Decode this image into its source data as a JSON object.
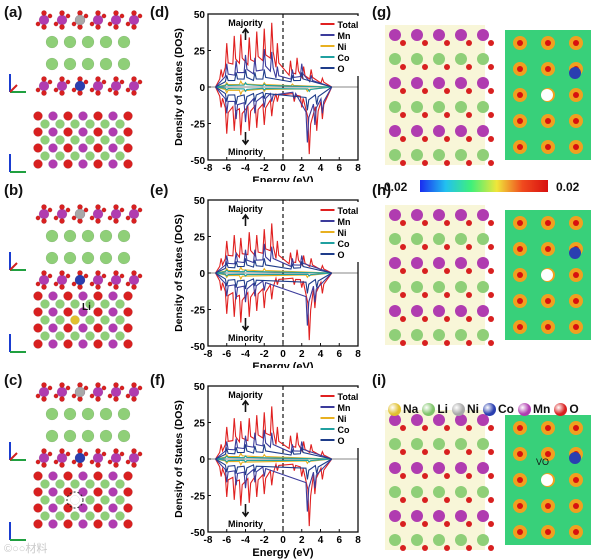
{
  "panel_labels": [
    "(a)",
    "(b)",
    "(c)",
    "(d)",
    "(e)",
    "(f)",
    "(g)",
    "(h)",
    "(i)"
  ],
  "colorbar": {
    "min_label": "-0.02",
    "max_label": "0.02",
    "colors": [
      "#1a2cf0",
      "#22c0f0",
      "#3ff07a",
      "#f0e63a",
      "#f04a1e",
      "#d81010"
    ]
  },
  "structure_labels": {
    "li_label": "Li",
    "vo_label": "VO"
  },
  "axis_triads": {
    "a": "a",
    "b": "b",
    "c": "c"
  },
  "atom_legend": [
    {
      "name": "Na",
      "color": "#e0c030"
    },
    {
      "name": "Li",
      "color": "#7fc46a"
    },
    {
      "name": "Ni",
      "color": "#a8a8a8"
    },
    {
      "name": "Co",
      "color": "#2a3fb0"
    },
    {
      "name": "Mn",
      "color": "#b03cb0"
    },
    {
      "name": "O",
      "color": "#d82020"
    }
  ],
  "watermark": "©○○材料",
  "chart_data": [
    {
      "id": "d",
      "type": "line",
      "xlabel": "Energy (eV)",
      "ylabel": "Density of States (DOS)",
      "xlim": [
        -8,
        8
      ],
      "ylim": [
        -50,
        50
      ],
      "xticks": [
        -8,
        -6,
        -4,
        -2,
        0,
        2,
        4,
        6,
        8
      ],
      "yticks": [
        50,
        25,
        0,
        -25,
        -50
      ],
      "annotations": {
        "top": "Majority",
        "bottom": "Minority"
      },
      "series": [
        {
          "name": "Total",
          "color": "#e02020",
          "up_peaks": [
            [
              -6.6,
              12
            ],
            [
              -6.0,
              30
            ],
            [
              -5.2,
              35
            ],
            [
              -4.5,
              36
            ],
            [
              -3.6,
              34
            ],
            [
              -2.8,
              38
            ],
            [
              -2.0,
              40
            ],
            [
              -1.2,
              44
            ],
            [
              -0.6,
              30
            ],
            [
              0.8,
              18
            ],
            [
              1.5,
              20
            ],
            [
              2.2,
              14
            ],
            [
              3.0,
              12
            ],
            [
              4.2,
              6
            ]
          ],
          "dn_peaks": [
            [
              -6.6,
              -14
            ],
            [
              -6.0,
              -32
            ],
            [
              -5.2,
              -30
            ],
            [
              -4.5,
              -33
            ],
            [
              -3.6,
              -30
            ],
            [
              -2.8,
              -28
            ],
            [
              -2.0,
              -26
            ],
            [
              -1.2,
              -20
            ],
            [
              -0.6,
              -10
            ],
            [
              1.2,
              -10
            ],
            [
              2.0,
              -14
            ],
            [
              2.8,
              -46
            ],
            [
              3.6,
              -30
            ],
            [
              4.2,
              -22
            ]
          ]
        },
        {
          "name": "Mn",
          "color": "#3b3b9b",
          "up_peaks": [
            [
              -6.0,
              16
            ],
            [
              -5.0,
              18
            ],
            [
              -4.0,
              22
            ],
            [
              -3.0,
              20
            ],
            [
              -2.0,
              26
            ],
            [
              -1.2,
              24
            ],
            [
              -0.6,
              14
            ],
            [
              1.0,
              12
            ],
            [
              2.0,
              16
            ],
            [
              3.0,
              8
            ]
          ],
          "dn_peaks": [
            [
              -6.0,
              -18
            ],
            [
              -5.0,
              -22
            ],
            [
              -4.0,
              -24
            ],
            [
              -3.0,
              -18
            ],
            [
              -2.0,
              -14
            ],
            [
              -1.2,
              -10
            ],
            [
              1.2,
              -8
            ],
            [
              2.6,
              -38
            ],
            [
              3.4,
              -26
            ],
            [
              4.2,
              -18
            ]
          ]
        },
        {
          "name": "Ni",
          "color": "#e8b020",
          "up_peaks": [
            [
              -6.0,
              3
            ],
            [
              -4.5,
              4
            ],
            [
              -2.0,
              3
            ],
            [
              1.0,
              2
            ]
          ],
          "dn_peaks": [
            [
              -6.0,
              -4
            ],
            [
              -4.5,
              -5
            ],
            [
              -2.0,
              -3
            ],
            [
              2.6,
              -3
            ]
          ]
        },
        {
          "name": "Co",
          "color": "#20a0a0",
          "up_peaks": [
            [
              -6.0,
              2
            ],
            [
              -4.0,
              3
            ],
            [
              -2.0,
              2
            ]
          ],
          "dn_peaks": [
            [
              -6.0,
              -2
            ],
            [
              -4.0,
              -3
            ],
            [
              -2.0,
              -2
            ],
            [
              2.8,
              -3
            ]
          ]
        },
        {
          "name": "O",
          "color": "#1e3c8a",
          "up_peaks": [
            [
              -6.0,
              8
            ],
            [
              -5.0,
              10
            ],
            [
              -4.0,
              12
            ],
            [
              -3.0,
              10
            ],
            [
              -2.0,
              12
            ],
            [
              1.0,
              8
            ],
            [
              2.0,
              10
            ]
          ],
          "dn_peaks": [
            [
              -6.0,
              -10
            ],
            [
              -5.0,
              -12
            ],
            [
              -4.0,
              -12
            ],
            [
              -3.0,
              -10
            ],
            [
              -2.0,
              -8
            ],
            [
              2.6,
              -16
            ],
            [
              3.6,
              -12
            ]
          ]
        }
      ]
    },
    {
      "id": "e",
      "type": "line",
      "xlabel": "Energy (eV)",
      "ylabel": "Density of States (DOS)",
      "xlim": [
        -8,
        8
      ],
      "ylim": [
        -50,
        50
      ],
      "xticks": [
        -8,
        -6,
        -4,
        -2,
        0,
        2,
        4,
        6,
        8
      ],
      "yticks": [
        50,
        25,
        0,
        -25,
        -50
      ],
      "annotations": {
        "top": "Majority",
        "bottom": "Minority"
      },
      "series": [
        {
          "name": "Total",
          "color": "#e02020",
          "up_peaks": [
            [
              -6.6,
              10
            ],
            [
              -6.0,
              22
            ],
            [
              -5.2,
              26
            ],
            [
              -4.5,
              24
            ],
            [
              -3.6,
              28
            ],
            [
              -2.8,
              26
            ],
            [
              -2.0,
              30
            ],
            [
              -1.2,
              34
            ],
            [
              -0.6,
              22
            ],
            [
              0.8,
              14
            ],
            [
              1.5,
              16
            ],
            [
              2.2,
              12
            ],
            [
              3.0,
              10
            ],
            [
              4.2,
              5
            ]
          ],
          "dn_peaks": [
            [
              -6.6,
              -12
            ],
            [
              -6.0,
              -28
            ],
            [
              -5.2,
              -30
            ],
            [
              -4.5,
              -34
            ],
            [
              -3.6,
              -30
            ],
            [
              -2.8,
              -26
            ],
            [
              -2.0,
              -24
            ],
            [
              -1.2,
              -18
            ],
            [
              -0.6,
              -8
            ],
            [
              1.2,
              -8
            ],
            [
              2.0,
              -10
            ],
            [
              2.8,
              -46
            ],
            [
              3.4,
              -24
            ],
            [
              4.2,
              -14
            ]
          ]
        },
        {
          "name": "Mn",
          "color": "#3b3b9b",
          "up_peaks": [
            [
              -6.0,
              12
            ],
            [
              -5.0,
              14
            ],
            [
              -4.0,
              16
            ],
            [
              -3.0,
              16
            ],
            [
              -2.0,
              20
            ],
            [
              -1.2,
              18
            ],
            [
              1.0,
              10
            ],
            [
              2.0,
              12
            ]
          ],
          "dn_peaks": [
            [
              -6.0,
              -16
            ],
            [
              -5.0,
              -18
            ],
            [
              -4.0,
              -20
            ],
            [
              -3.0,
              -16
            ],
            [
              -2.0,
              -12
            ],
            [
              2.6,
              -36
            ],
            [
              3.4,
              -20
            ]
          ]
        },
        {
          "name": "Ni",
          "color": "#e8b020",
          "up_peaks": [
            [
              -6.0,
              3
            ],
            [
              -4.5,
              4
            ],
            [
              -2.0,
              3
            ]
          ],
          "dn_peaks": [
            [
              -6.0,
              -3
            ],
            [
              -4.5,
              -4
            ],
            [
              2.6,
              -3
            ]
          ]
        },
        {
          "name": "Co",
          "color": "#20a0a0",
          "up_peaks": [
            [
              -6.0,
              2
            ],
            [
              -4.0,
              2
            ]
          ],
          "dn_peaks": [
            [
              -6.0,
              -2
            ],
            [
              -4.0,
              -2
            ],
            [
              2.8,
              -2
            ]
          ]
        },
        {
          "name": "O",
          "color": "#1e3c8a",
          "up_peaks": [
            [
              -6.0,
              7
            ],
            [
              -5.0,
              8
            ],
            [
              -4.0,
              10
            ],
            [
              -3.0,
              9
            ],
            [
              -2.0,
              10
            ],
            [
              1.0,
              6
            ],
            [
              2.0,
              8
            ]
          ],
          "dn_peaks": [
            [
              -6.0,
              -9
            ],
            [
              -5.0,
              -10
            ],
            [
              -4.0,
              -11
            ],
            [
              -3.0,
              -9
            ],
            [
              2.6,
              -14
            ],
            [
              3.6,
              -10
            ]
          ]
        }
      ]
    },
    {
      "id": "f",
      "type": "line",
      "xlabel": "Energy (eV)",
      "ylabel": "Density of States (DOS)",
      "xlim": [
        -8,
        8
      ],
      "ylim": [
        -50,
        50
      ],
      "xticks": [
        -8,
        -6,
        -4,
        -2,
        0,
        2,
        4,
        6,
        8
      ],
      "yticks": [
        50,
        25,
        0,
        -25,
        -50
      ],
      "annotations": {
        "top": "Majority",
        "bottom": "Minority"
      },
      "series": [
        {
          "name": "Total",
          "color": "#e02020",
          "up_peaks": [
            [
              -6.6,
              10
            ],
            [
              -6.0,
              22
            ],
            [
              -5.2,
              28
            ],
            [
              -4.5,
              26
            ],
            [
              -3.6,
              28
            ],
            [
              -2.8,
              30
            ],
            [
              -2.0,
              32
            ],
            [
              -1.2,
              36
            ],
            [
              -0.6,
              22
            ],
            [
              0.8,
              16
            ],
            [
              1.5,
              18
            ],
            [
              2.2,
              12
            ],
            [
              3.0,
              10
            ],
            [
              4.2,
              5
            ]
          ],
          "dn_peaks": [
            [
              -6.6,
              -12
            ],
            [
              -6.0,
              -26
            ],
            [
              -5.2,
              -28
            ],
            [
              -4.5,
              -32
            ],
            [
              -3.6,
              -30
            ],
            [
              -2.8,
              -26
            ],
            [
              -2.0,
              -24
            ],
            [
              -1.2,
              -18
            ],
            [
              -0.6,
              -8
            ],
            [
              1.2,
              -8
            ],
            [
              2.0,
              -12
            ],
            [
              2.8,
              -46
            ],
            [
              3.4,
              -24
            ],
            [
              4.2,
              -14
            ]
          ]
        },
        {
          "name": "Mn",
          "color": "#3b3b9b",
          "up_peaks": [
            [
              -6.0,
              12
            ],
            [
              -5.0,
              14
            ],
            [
              -4.0,
              16
            ],
            [
              -3.0,
              18
            ],
            [
              -2.0,
              20
            ],
            [
              -1.2,
              18
            ],
            [
              1.0,
              10
            ],
            [
              2.0,
              12
            ]
          ],
          "dn_peaks": [
            [
              -6.0,
              -16
            ],
            [
              -5.0,
              -18
            ],
            [
              -4.0,
              -20
            ],
            [
              -3.0,
              -16
            ],
            [
              -2.0,
              -12
            ],
            [
              2.6,
              -36
            ],
            [
              3.4,
              -20
            ]
          ]
        },
        {
          "name": "Ni",
          "color": "#e8b020",
          "up_peaks": [
            [
              -6.0,
              3
            ],
            [
              -4.5,
              4
            ],
            [
              -2.0,
              3
            ]
          ],
          "dn_peaks": [
            [
              -6.0,
              -3
            ],
            [
              -4.5,
              -4
            ],
            [
              2.6,
              -3
            ]
          ]
        },
        {
          "name": "Co",
          "color": "#20a0a0",
          "up_peaks": [
            [
              -6.0,
              2
            ],
            [
              -4.0,
              2
            ]
          ],
          "dn_peaks": [
            [
              -6.0,
              -2
            ],
            [
              -4.0,
              -2
            ],
            [
              2.8,
              -2
            ]
          ]
        },
        {
          "name": "O",
          "color": "#1e3c8a",
          "up_peaks": [
            [
              -6.0,
              7
            ],
            [
              -5.0,
              8
            ],
            [
              -4.0,
              10
            ],
            [
              -3.0,
              9
            ],
            [
              -2.0,
              10
            ],
            [
              1.0,
              6
            ],
            [
              2.0,
              8
            ]
          ],
          "dn_peaks": [
            [
              -6.0,
              -9
            ],
            [
              -5.0,
              -10
            ],
            [
              -4.0,
              -11
            ],
            [
              -3.0,
              -9
            ],
            [
              2.6,
              -14
            ],
            [
              3.6,
              -10
            ]
          ]
        }
      ]
    }
  ]
}
